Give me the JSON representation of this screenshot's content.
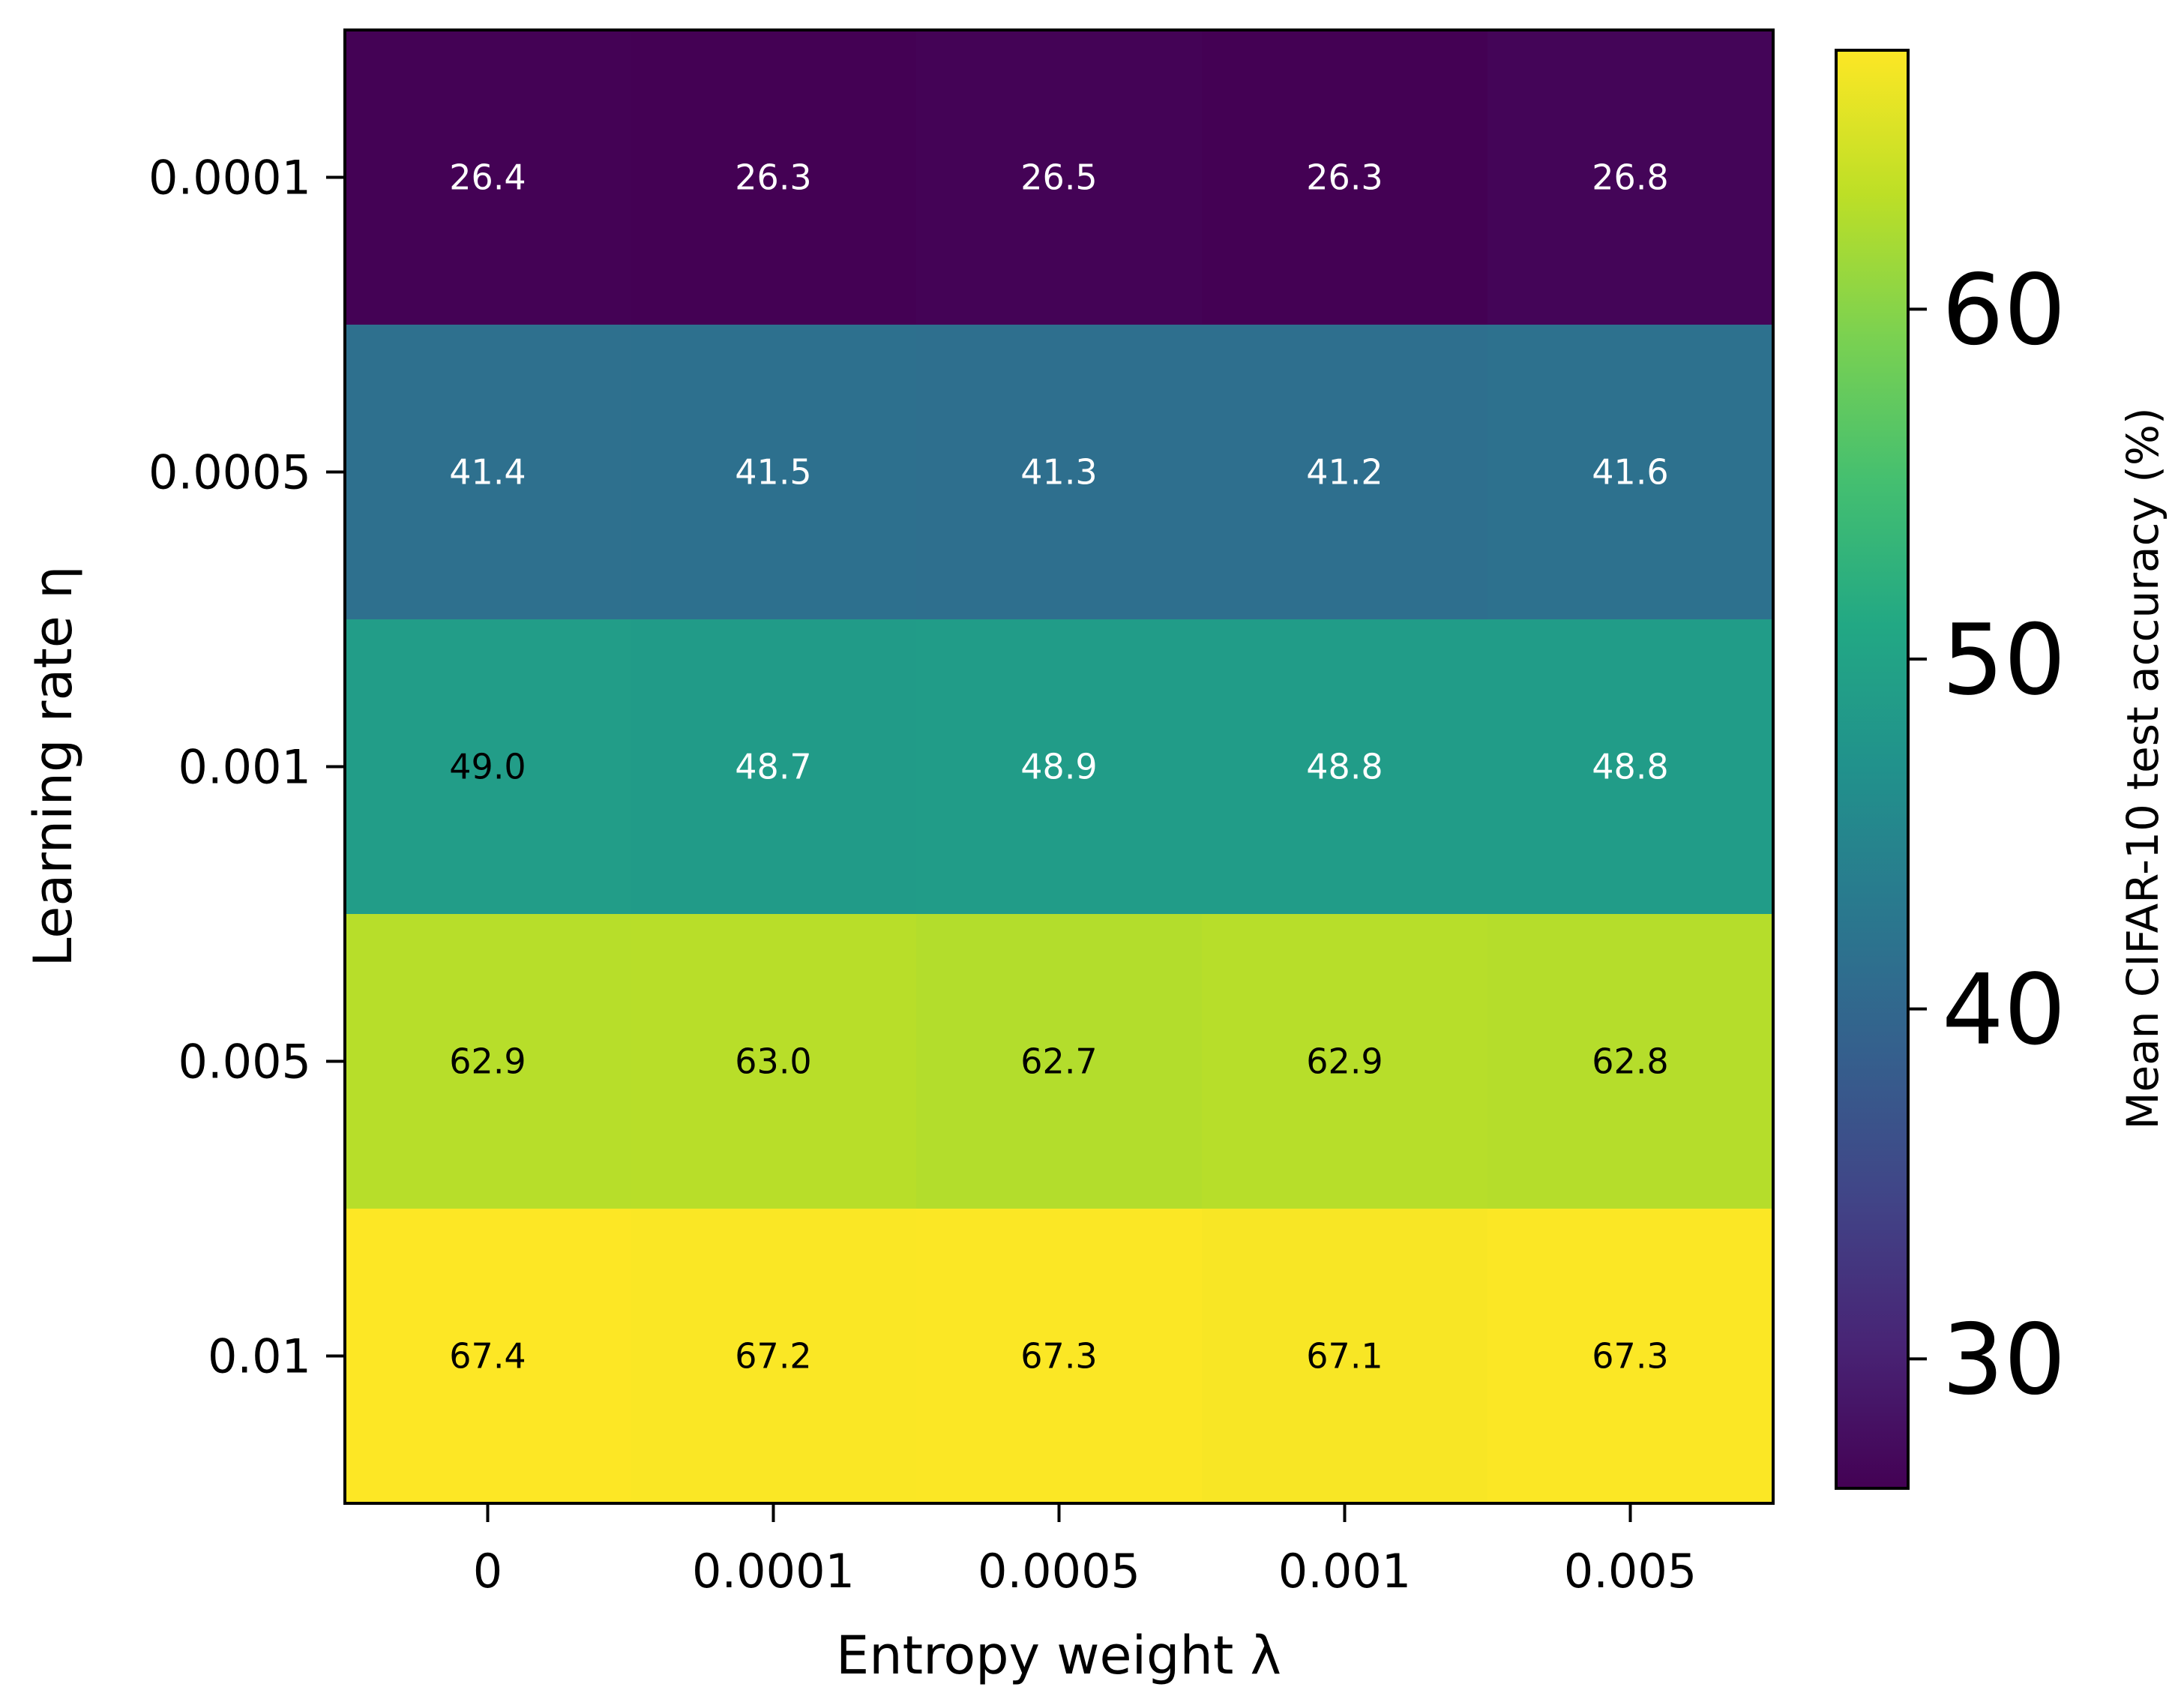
{
  "chart_data": {
    "type": "heatmap",
    "title": "",
    "xlabel": "Entropy weight λ",
    "ylabel": "Learning rate η",
    "x_categories": [
      "0",
      "0.0001",
      "0.0005",
      "0.001",
      "0.005"
    ],
    "y_categories": [
      "0.0001",
      "0.0005",
      "0.001",
      "0.005",
      "0.01"
    ],
    "values": [
      [
        26.4,
        26.3,
        26.5,
        26.3,
        26.8
      ],
      [
        41.4,
        41.5,
        41.3,
        41.2,
        41.6
      ],
      [
        49.0,
        48.7,
        48.9,
        48.8,
        48.8
      ],
      [
        62.9,
        63.0,
        62.7,
        62.9,
        62.8
      ],
      [
        67.4,
        67.2,
        67.3,
        67.1,
        67.3
      ]
    ],
    "value_labels": [
      [
        "26.4",
        "26.3",
        "26.5",
        "26.3",
        "26.8"
      ],
      [
        "41.4",
        "41.5",
        "41.3",
        "41.2",
        "41.6"
      ],
      [
        "49.0",
        "48.7",
        "48.9",
        "48.8",
        "48.8"
      ],
      [
        "62.9",
        "63.0",
        "62.7",
        "62.9",
        "62.8"
      ],
      [
        "67.4",
        "67.2",
        "67.3",
        "67.1",
        "67.3"
      ]
    ],
    "colormap": "viridis",
    "colorbar": {
      "label": "Mean CIFAR-10 test accuracy (%)",
      "ticks": [
        30,
        40,
        50,
        60
      ],
      "tick_labels": [
        "30",
        "40",
        "50",
        "60"
      ],
      "range": [
        26.3,
        67.4
      ]
    },
    "grid": false,
    "label_colors": {
      "dark_cells": "#ffffff",
      "light_cells": "#000000"
    }
  }
}
